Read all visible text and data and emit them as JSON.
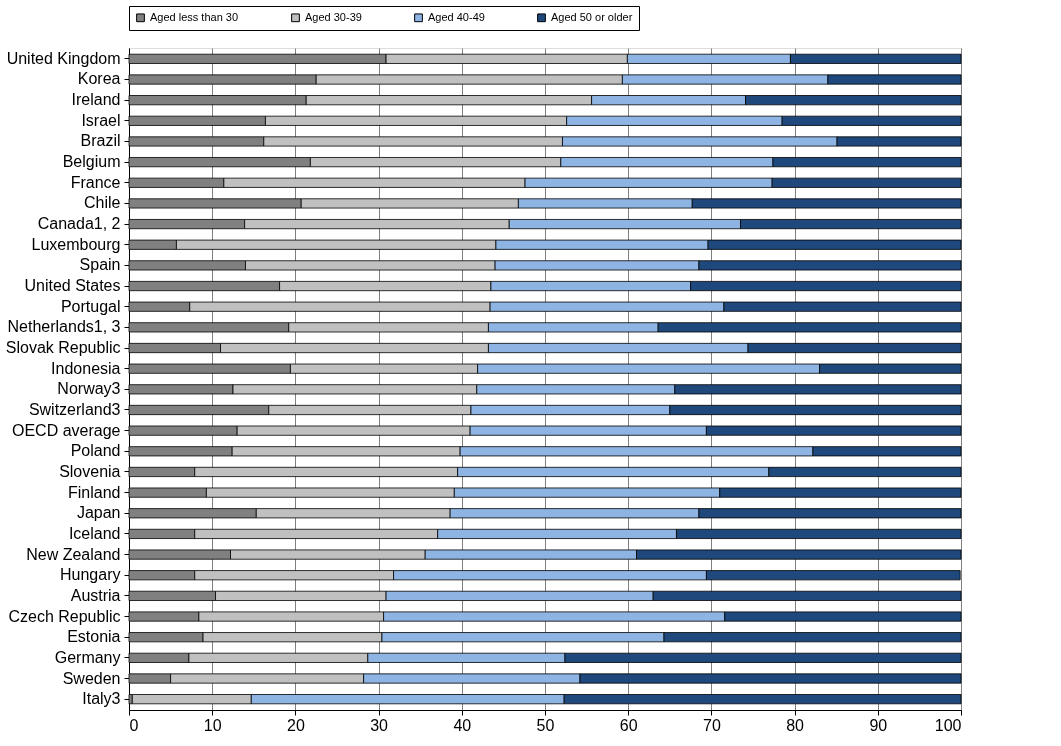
{
  "chart_data": {
    "type": "bar",
    "orientation": "horizontal",
    "stacked": true,
    "categories": [
      "United Kingdom",
      "Korea",
      "Ireland",
      "Israel",
      "Brazil",
      "Belgium",
      "France",
      "Chile",
      "Canada1, 2",
      "Luxembourg",
      "Spain",
      "United States",
      "Portugal",
      "Netherlands1, 3",
      "Slovak Republic",
      "Indonesia",
      "Norway3",
      "Switzerland3",
      "OECD average",
      "Poland",
      "Slovenia",
      "Finland",
      "Japan",
      "Iceland",
      "New Zealand",
      "Hungary",
      "Austria",
      "Czech Republic",
      "Estonia",
      "Germany",
      "Sweden",
      "Italy3"
    ],
    "series": [
      {
        "name": "Aged less than 30",
        "color": "#808080",
        "values": [
          30.9,
          22.5,
          21.3,
          16.4,
          16.2,
          21.8,
          11.4,
          20.7,
          13.9,
          5.7,
          14.0,
          18.1,
          7.3,
          19.2,
          11.0,
          19.4,
          12.5,
          16.8,
          13.0,
          12.4,
          7.9,
          9.3,
          15.3,
          7.9,
          12.2,
          7.9,
          10.4,
          8.4,
          8.9,
          7.2,
          5.0,
          0.4
        ]
      },
      {
        "name": "Aged 30-39",
        "color": "#c0c0c0",
        "values": [
          29.0,
          36.8,
          34.3,
          36.2,
          35.9,
          30.1,
          36.2,
          26.1,
          31.8,
          38.4,
          30.0,
          25.4,
          36.1,
          24.0,
          32.2,
          22.5,
          29.3,
          24.3,
          28.0,
          27.4,
          31.6,
          29.8,
          23.3,
          29.2,
          23.4,
          23.9,
          20.5,
          22.2,
          21.5,
          21.5,
          23.2,
          14.3
        ]
      },
      {
        "name": "Aged 40-49",
        "color": "#8db4e2",
        "values": [
          19.6,
          24.7,
          18.5,
          25.9,
          33.0,
          25.5,
          29.7,
          20.9,
          27.8,
          25.5,
          24.5,
          24.0,
          28.1,
          20.4,
          31.2,
          41.1,
          23.8,
          23.9,
          28.4,
          42.4,
          37.4,
          31.9,
          29.9,
          28.7,
          25.4,
          37.6,
          32.1,
          41.0,
          33.9,
          23.7,
          26.0,
          37.6
        ]
      },
      {
        "name": "Aged 50 or older",
        "color": "#1f497d",
        "values": [
          20.5,
          16.0,
          25.9,
          21.5,
          14.9,
          22.6,
          22.7,
          32.3,
          26.5,
          30.4,
          31.5,
          32.5,
          28.5,
          36.4,
          25.6,
          17.0,
          34.4,
          35.0,
          30.6,
          17.8,
          23.1,
          29.0,
          31.5,
          34.2,
          39.0,
          30.5,
          37.0,
          28.4,
          35.7,
          47.6,
          45.8,
          47.7
        ]
      }
    ],
    "xlim": [
      0,
      100
    ],
    "xticks": [
      0,
      10,
      20,
      30,
      40,
      50,
      60,
      70,
      80,
      90,
      100
    ],
    "grid": "x",
    "legend": "top"
  }
}
